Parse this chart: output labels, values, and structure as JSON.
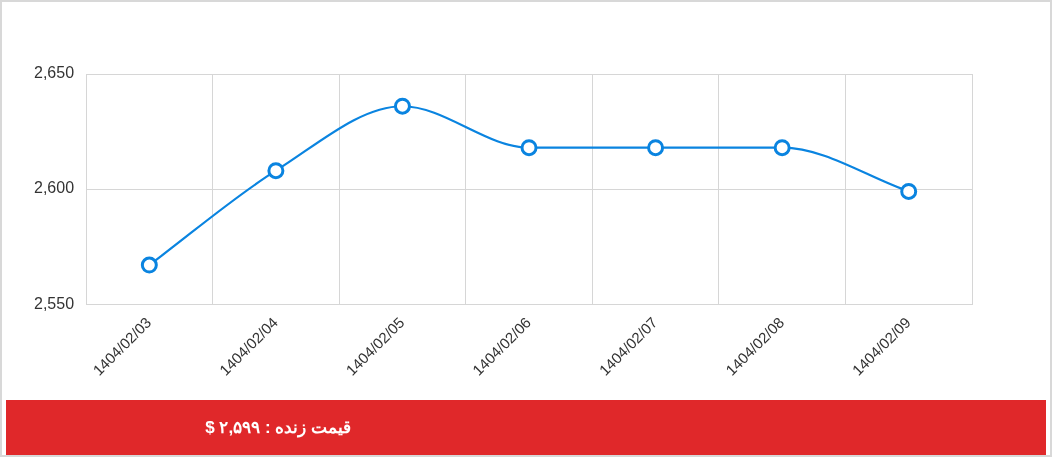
{
  "chart_data": {
    "type": "line",
    "categories": [
      "1404/02/03",
      "1404/02/04",
      "1404/02/05",
      "1404/02/06",
      "1404/02/07",
      "1404/02/08",
      "1404/02/09"
    ],
    "series": [
      {
        "color": "#0a84e0",
        "values": [
          2567,
          2608,
          2636,
          2618,
          2618,
          2618,
          2599
        ]
      }
    ],
    "ylim": [
      2550,
      2650
    ],
    "yticks": [
      {
        "value": 2550,
        "label": "2,550"
      },
      {
        "value": 2600,
        "label": "2,600"
      },
      {
        "value": 2650,
        "label": "2,650"
      }
    ],
    "grid": true,
    "marker": "circle",
    "line_style": "solid",
    "legend": false,
    "annotations": [
      "قیمت زنده : ۲,۵۹۹ $"
    ]
  }
}
